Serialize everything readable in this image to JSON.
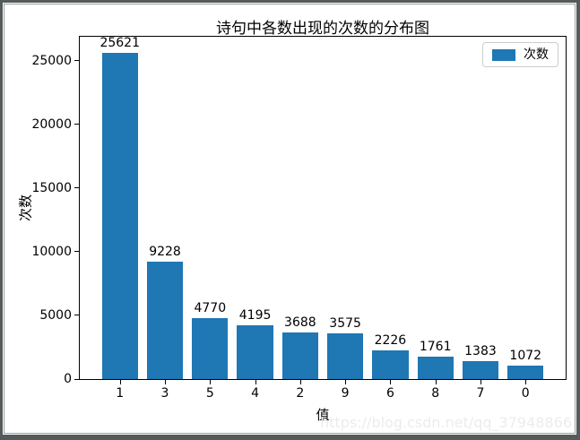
{
  "colors": {
    "frame": "#555b5b",
    "inner_line": "#9aa0a0",
    "bar": "#1f77b4",
    "spine": "#000000",
    "watermark": "#ececec",
    "legend_border": "#cccccc"
  },
  "watermark": {
    "text": "https://blog.csdn.net/qq_37948866"
  },
  "chart_data": {
    "type": "bar",
    "title": "诗句中各数出现的次数的分布图",
    "xlabel": "值",
    "ylabel": "次数",
    "categories": [
      "1",
      "3",
      "5",
      "4",
      "2",
      "9",
      "6",
      "8",
      "7",
      "0"
    ],
    "values": [
      25621,
      9228,
      4770,
      4195,
      3688,
      3575,
      2226,
      1761,
      1383,
      1072
    ],
    "value_labels": [
      "25621",
      "9228",
      "4770",
      "4195",
      "3688",
      "3575",
      "2226",
      "1761",
      "1383",
      "1072"
    ],
    "legend": {
      "label": "次数",
      "position": "upper right"
    },
    "yticks": [
      0,
      5000,
      10000,
      15000,
      20000,
      25000
    ],
    "ylim": [
      0,
      26900
    ],
    "xlim": [
      -0.89,
      9.89
    ],
    "bar_width": 0.8,
    "grid": false,
    "bar_color": "#1f77b4"
  }
}
